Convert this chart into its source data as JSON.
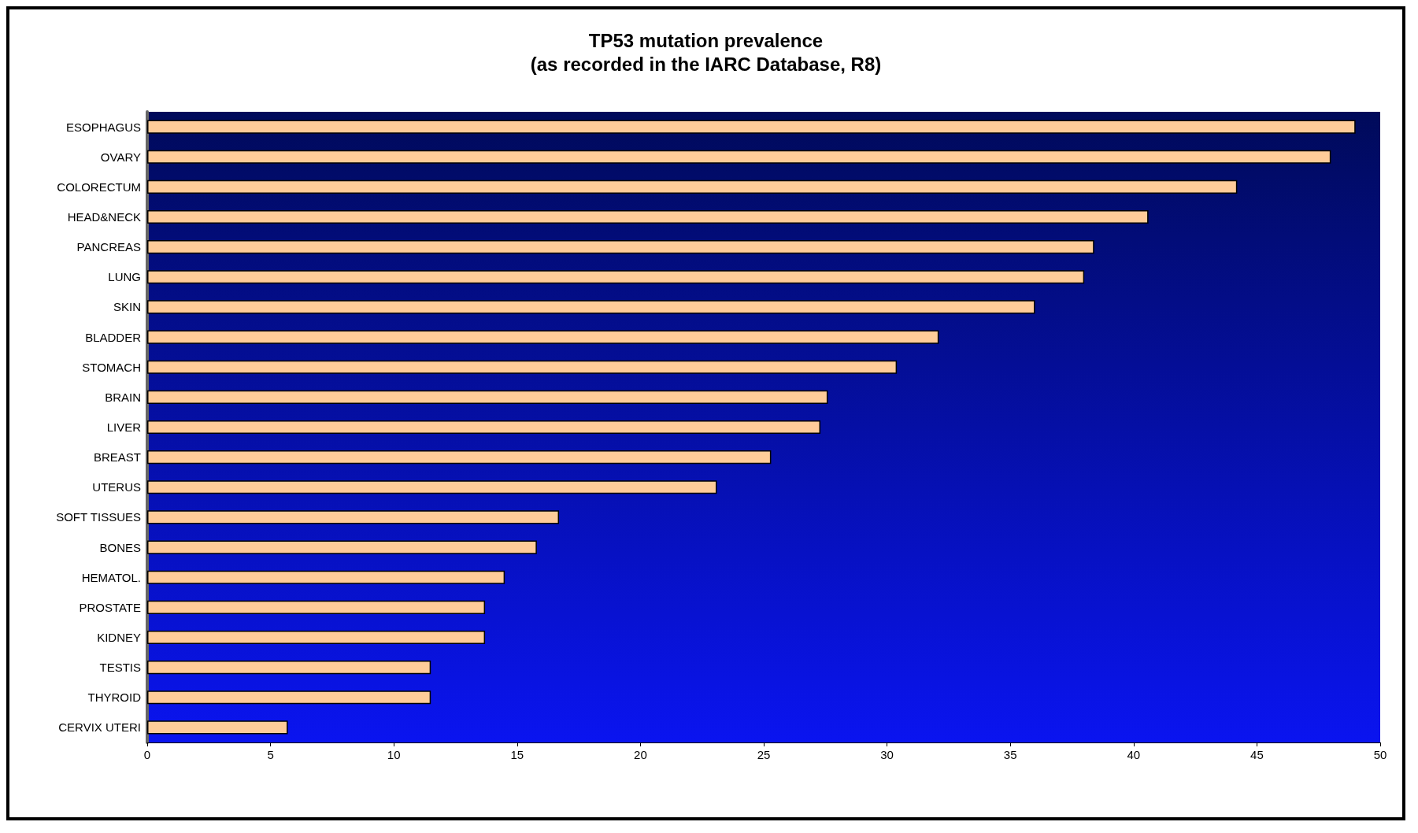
{
  "chart_data": {
    "type": "bar",
    "orientation": "horizontal",
    "title": "TP53 mutation prevalence",
    "subtitle": "(as recorded in the IARC Database, R8)",
    "categories": [
      "ESOPHAGUS",
      "OVARY",
      "COLORECTUM",
      "HEAD&NECK",
      "PANCREAS",
      "LUNG",
      "SKIN",
      "BLADDER",
      "STOMACH",
      "BRAIN",
      "LIVER",
      "BREAST",
      "UTERUS",
      "SOFT TISSUES",
      "BONES",
      "HEMATOL.",
      "PROSTATE",
      "KIDNEY",
      "TESTIS",
      "THYROID",
      "CERVIX UTERI"
    ],
    "values": [
      49.0,
      48.0,
      44.2,
      40.6,
      38.4,
      38.0,
      36.0,
      32.1,
      30.4,
      27.6,
      27.3,
      25.3,
      23.1,
      16.7,
      15.8,
      14.5,
      13.7,
      13.7,
      11.5,
      11.5,
      5.7
    ],
    "color": "#ffcc99",
    "xlim": [
      0,
      50
    ],
    "xticks": [
      0,
      5,
      10,
      15,
      20,
      25,
      30,
      35,
      40,
      45,
      50
    ],
    "grid": false
  }
}
